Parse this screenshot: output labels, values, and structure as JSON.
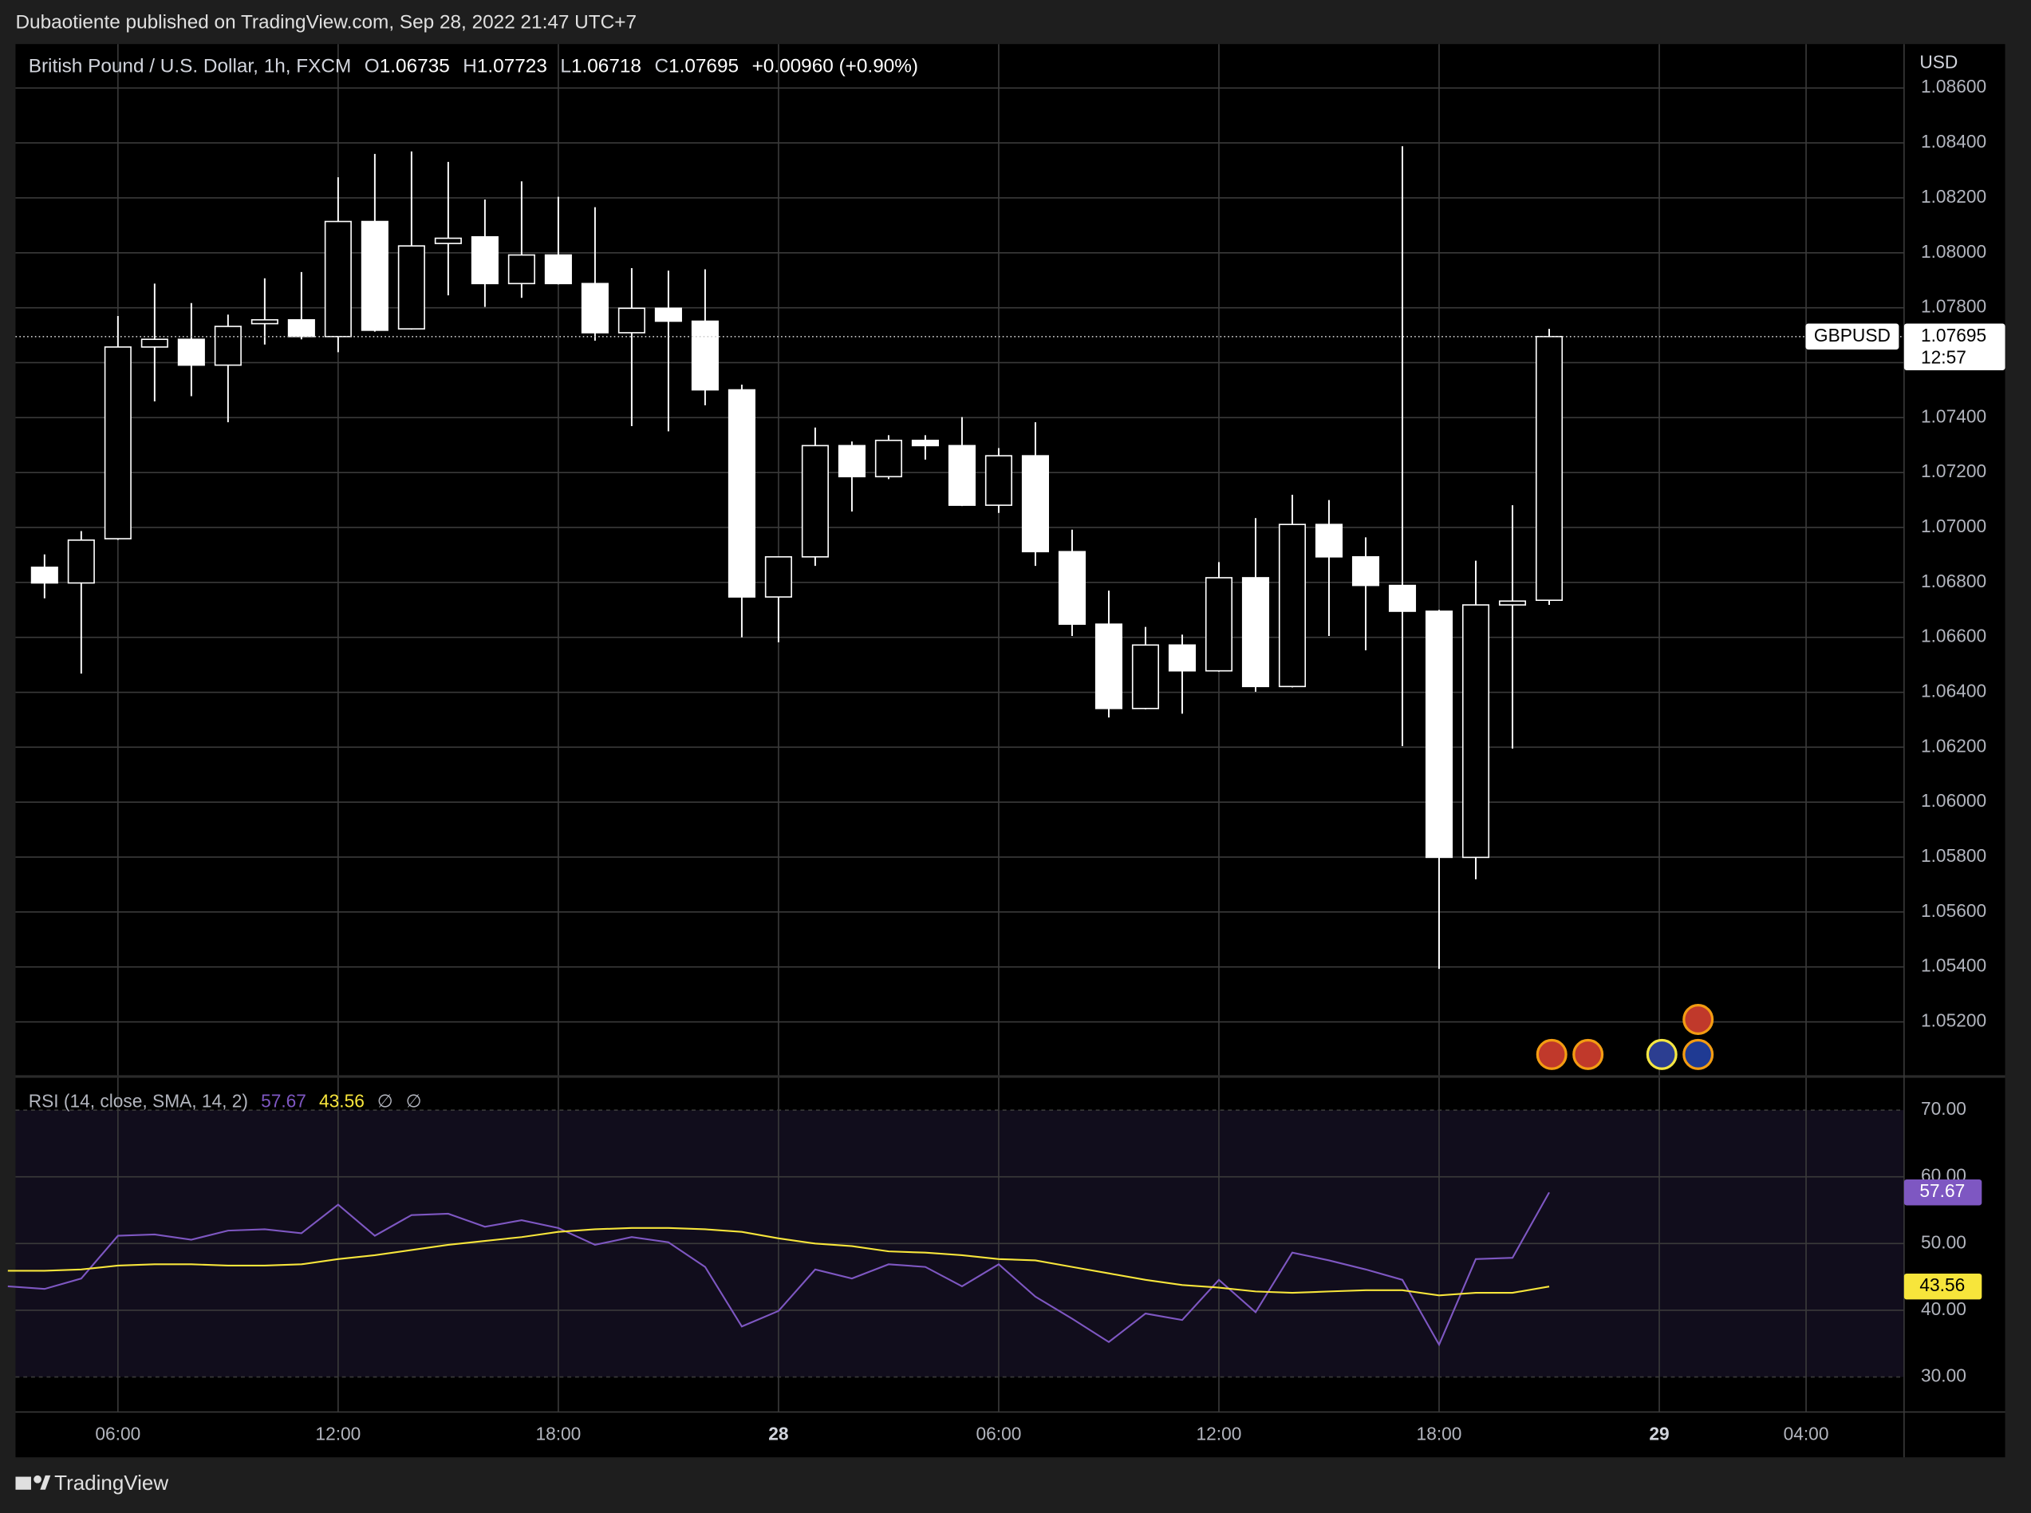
{
  "header": {
    "publisher": "Dubaotiente published on TradingView.com, Sep 28, 2022 21:47 UTC+7",
    "brand": "TradingView"
  },
  "chart_data": [
    {
      "type": "candlestick",
      "title": "British Pound / U.S. Dollar, 1h, FXCM",
      "ohlc_labels": [
        "O",
        "H",
        "L",
        "C"
      ],
      "change": "+0.00960 (+0.90%)",
      "currency": "USD",
      "symbol": "GBPUSD",
      "countdown": "12:57",
      "up_color": "#000000",
      "down_color": "#ffffff",
      "wick_color": "#ffffff",
      "x": [
        4,
        5,
        6,
        7,
        8,
        9,
        10,
        11,
        12,
        13,
        14,
        15,
        16,
        17,
        18,
        19,
        20,
        21,
        22,
        23,
        24,
        25,
        26,
        27,
        28,
        29,
        30,
        31,
        32,
        33,
        34,
        35,
        36,
        37,
        38,
        39,
        40,
        41,
        42,
        43,
        44,
        45
      ],
      "open": [
        1.06855,
        1.06798,
        1.06959,
        1.07657,
        1.07685,
        1.07591,
        1.07742,
        1.07756,
        1.07695,
        1.08114,
        1.07723,
        1.08034,
        1.08058,
        1.07888,
        1.07992,
        1.07888,
        1.07709,
        1.07798,
        1.07751,
        1.07501,
        1.06747,
        1.06893,
        1.07298,
        1.07185,
        1.07317,
        1.07298,
        1.07081,
        1.07261,
        1.06912,
        1.06648,
        1.06341,
        1.06572,
        1.06478,
        1.06817,
        1.06421,
        1.07011,
        1.06893,
        1.06789,
        1.06695,
        1.05799,
        1.06718,
        1.06735
      ],
      "high": [
        1.06902,
        1.06987,
        1.0777,
        1.07888,
        1.07817,
        1.07775,
        1.07907,
        1.0793,
        1.08275,
        1.0836,
        1.08369,
        1.08331,
        1.08194,
        1.0826,
        1.08204,
        1.08166,
        1.07944,
        1.07935,
        1.0794,
        1.0752,
        1.06895,
        1.07364,
        1.07313,
        1.07336,
        1.07336,
        1.07402,
        1.07289,
        1.07383,
        1.06992,
        1.0677,
        1.06638,
        1.0661,
        1.06874,
        1.07034,
        1.07119,
        1.071,
        1.06964,
        1.08388,
        1.067,
        1.06879,
        1.07081,
        1.07723
      ],
      "low": [
        1.06742,
        1.06468,
        1.06955,
        1.07459,
        1.07478,
        1.07383,
        1.07666,
        1.07685,
        1.07638,
        1.07713,
        1.0772,
        1.07845,
        1.07803,
        1.07836,
        1.07885,
        1.0768,
        1.07369,
        1.0735,
        1.07445,
        1.066,
        1.06582,
        1.0686,
        1.07058,
        1.07176,
        1.07247,
        1.07078,
        1.07053,
        1.0686,
        1.06605,
        1.06308,
        1.06338,
        1.06322,
        1.06475,
        1.06402,
        1.06418,
        1.06605,
        1.06553,
        1.06204,
        1.05393,
        1.05719,
        1.06195,
        1.06718
      ],
      "close": [
        1.06798,
        1.06954,
        1.07657,
        1.07685,
        1.07591,
        1.07732,
        1.07756,
        1.07695,
        1.08114,
        1.07718,
        1.08025,
        1.08053,
        1.07888,
        1.07992,
        1.07888,
        1.07709,
        1.07798,
        1.07751,
        1.07501,
        1.06747,
        1.06893,
        1.07298,
        1.07185,
        1.07317,
        1.07298,
        1.07081,
        1.07261,
        1.06912,
        1.06648,
        1.06341,
        1.06572,
        1.06478,
        1.06817,
        1.06421,
        1.07011,
        1.06893,
        1.06789,
        1.06695,
        1.05799,
        1.06718,
        1.06732,
        1.07695
      ],
      "xlim": [
        3.21,
        54.67
      ],
      "ylim": [
        1.05006,
        1.0876
      ],
      "yticks": [
        {
          "value": 1.052,
          "label": "1.05200"
        },
        {
          "value": 1.054,
          "label": "1.05400"
        },
        {
          "value": 1.056,
          "label": "1.05600"
        },
        {
          "value": 1.058,
          "label": "1.05800"
        },
        {
          "value": 1.06,
          "label": "1.06000"
        },
        {
          "value": 1.062,
          "label": "1.06200"
        },
        {
          "value": 1.064,
          "label": "1.06400"
        },
        {
          "value": 1.066,
          "label": "1.06600"
        },
        {
          "value": 1.068,
          "label": "1.06800"
        },
        {
          "value": 1.07,
          "label": "1.07000"
        },
        {
          "value": 1.072,
          "label": "1.07200"
        },
        {
          "value": 1.074,
          "label": "1.07400"
        },
        {
          "value": 1.076,
          "label": "1.07600"
        },
        {
          "value": 1.078,
          "label": "1.07800"
        },
        {
          "value": 1.08,
          "label": "1.08000"
        },
        {
          "value": 1.082,
          "label": "1.08200"
        },
        {
          "value": 1.084,
          "label": "1.08400"
        },
        {
          "value": 1.086,
          "label": "1.08600"
        }
      ],
      "grid": true
    },
    {
      "type": "line",
      "title": "RSI (14, close, SMA, 14, 2)",
      "extra_labels": [
        "∅",
        "∅"
      ],
      "band": [
        30,
        70
      ],
      "x": [
        3,
        4,
        5,
        6,
        7,
        8,
        9,
        10,
        11,
        12,
        13,
        14,
        15,
        16,
        17,
        18,
        19,
        20,
        21,
        22,
        23,
        24,
        25,
        26,
        27,
        28,
        29,
        30,
        31,
        32,
        33,
        34,
        35,
        36,
        37,
        38,
        39,
        40,
        41,
        42,
        43,
        44,
        45
      ],
      "series": [
        {
          "name": "RSI",
          "color": "#7e57c2",
          "values": [
            43.59,
            43.2,
            44.76,
            51.17,
            51.36,
            50.58,
            51.94,
            52.14,
            51.55,
            55.83,
            51.17,
            54.27,
            54.47,
            52.52,
            53.5,
            52.33,
            49.81,
            50.97,
            50.19,
            46.5,
            37.57,
            39.9,
            46.12,
            44.76,
            46.89,
            46.5,
            43.59,
            46.89,
            42.04,
            38.74,
            35.24,
            39.51,
            38.54,
            44.56,
            39.71,
            48.64,
            47.48,
            46.12,
            44.56,
            34.85,
            47.67,
            47.86,
            57.67
          ]
        },
        {
          "name": "SMA",
          "color": "#f7e53b",
          "values": [
            45.92,
            45.92,
            46.12,
            46.7,
            46.89,
            46.89,
            46.7,
            46.7,
            46.89,
            47.67,
            48.25,
            49.03,
            49.81,
            50.39,
            50.97,
            51.75,
            52.14,
            52.33,
            52.33,
            52.14,
            51.75,
            50.78,
            50,
            49.61,
            48.83,
            48.64,
            48.25,
            47.67,
            47.48,
            46.5,
            45.53,
            44.56,
            43.79,
            43.4,
            42.82,
            42.62,
            42.82,
            43.01,
            43.01,
            42.23,
            42.62,
            42.62,
            43.56
          ]
        }
      ],
      "xlim": [
        3.21,
        54.67
      ],
      "ylim": [
        24.76,
        74.85
      ],
      "yticks": [
        {
          "value": 30,
          "label": "30.00"
        },
        {
          "value": 40,
          "label": "40.00"
        },
        {
          "value": 50,
          "label": "50.00"
        },
        {
          "value": 60,
          "label": "60.00"
        },
        {
          "value": 70,
          "label": "70.00"
        }
      ],
      "xticks": [
        {
          "value": 6,
          "label": "06:00"
        },
        {
          "value": 12,
          "label": "12:00"
        },
        {
          "value": 18,
          "label": "18:00"
        },
        {
          "value": 24,
          "label": "28"
        },
        {
          "value": 30,
          "label": "06:00"
        },
        {
          "value": 36,
          "label": "12:00"
        },
        {
          "value": 42,
          "label": "18:00"
        },
        {
          "value": 48,
          "label": "29"
        },
        {
          "value": 52,
          "label": "04:00"
        }
      ],
      "grid": true
    }
  ]
}
